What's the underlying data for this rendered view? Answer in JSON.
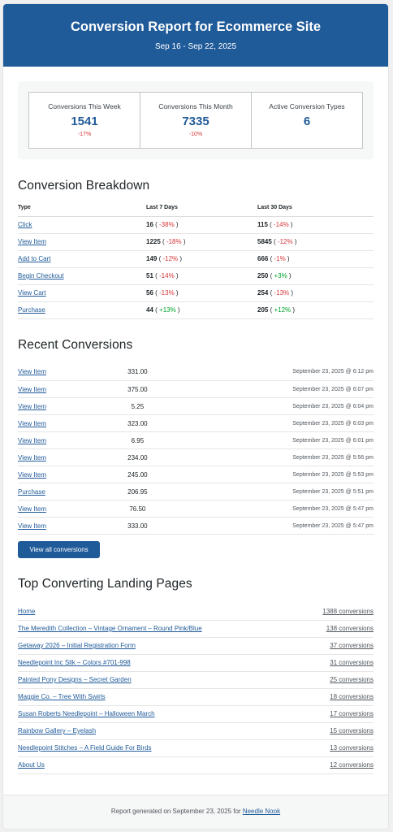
{
  "header": {
    "title": "Conversion Report for Ecommerce Site",
    "date_range": "Sep 16 - Sep 22, 2025"
  },
  "stats": [
    {
      "label": "Conversions This Week",
      "value": "1541",
      "change": "-17%"
    },
    {
      "label": "Conversions This Month",
      "value": "7335",
      "change": "-10%"
    },
    {
      "label": "Active Conversion Types",
      "value": "6",
      "change": ""
    }
  ],
  "breakdown": {
    "title": "Conversion Breakdown",
    "headers": [
      "Type",
      "Last 7 Days",
      "Last 30 Days"
    ],
    "rows": [
      {
        "type": "Click",
        "week": "16",
        "week_chg": "-38%",
        "week_dir": "neg",
        "month": "115",
        "month_chg": "-14%",
        "month_dir": "neg"
      },
      {
        "type": "View Item",
        "week": "1225",
        "week_chg": "-18%",
        "week_dir": "neg",
        "month": "5845",
        "month_chg": "-12%",
        "month_dir": "neg"
      },
      {
        "type": "Add to Cart",
        "week": "149",
        "week_chg": "-12%",
        "week_dir": "neg",
        "month": "666",
        "month_chg": "-1%",
        "month_dir": "neg"
      },
      {
        "type": "Begin Checkout",
        "week": "51",
        "week_chg": "-14%",
        "week_dir": "neg",
        "month": "250",
        "month_chg": "+3%",
        "month_dir": "pos"
      },
      {
        "type": "View Cart",
        "week": "56",
        "week_chg": "-13%",
        "week_dir": "neg",
        "month": "254",
        "month_chg": "-13%",
        "month_dir": "neg"
      },
      {
        "type": "Purchase",
        "week": "44",
        "week_chg": "+13%",
        "week_dir": "pos",
        "month": "205",
        "month_chg": "+12%",
        "month_dir": "pos"
      }
    ]
  },
  "recent": {
    "title": "Recent Conversions",
    "rows": [
      {
        "type": "View Item",
        "amount": "331.00",
        "date": "September 23, 2025 @ 6:12 pm"
      },
      {
        "type": "View Item",
        "amount": "375.00",
        "date": "September 23, 2025 @ 6:07 pm"
      },
      {
        "type": "View Item",
        "amount": "5.25",
        "date": "September 23, 2025 @ 6:04 pm"
      },
      {
        "type": "View Item",
        "amount": "323.00",
        "date": "September 23, 2025 @ 6:03 pm"
      },
      {
        "type": "View Item",
        "amount": "6.95",
        "date": "September 23, 2025 @ 6:01 pm"
      },
      {
        "type": "View Item",
        "amount": "234.00",
        "date": "September 23, 2025 @ 5:56 pm"
      },
      {
        "type": "View Item",
        "amount": "245.00",
        "date": "September 23, 2025 @ 5:53 pm"
      },
      {
        "type": "Purchase",
        "amount": "206.95",
        "date": "September 23, 2025 @ 5:51 pm"
      },
      {
        "type": "View Item",
        "amount": "76.50",
        "date": "September 23, 2025 @ 5:47 pm"
      },
      {
        "type": "View Item",
        "amount": "333.00",
        "date": "September 23, 2025 @ 5:47 pm"
      }
    ],
    "button_label": "View all conversions"
  },
  "landing": {
    "title": "Top Converting Landing Pages",
    "rows": [
      {
        "page": "Home",
        "count": "1388 conversions"
      },
      {
        "page": "The Meredith Collection – Vintage Ornament – Round Pink/Blue",
        "count": "138 conversions"
      },
      {
        "page": "Getaway 2026 – Initial Registration Form",
        "count": "37 conversions"
      },
      {
        "page": "Needlepoint Inc Silk – Colors #701-998",
        "count": "31 conversions"
      },
      {
        "page": "Painted Pony Designs – Secret Garden",
        "count": "25 conversions"
      },
      {
        "page": "Maggie Co. – Tree With Swirls",
        "count": "18 conversions"
      },
      {
        "page": "Susan Roberts Needlepoint – Halloween March",
        "count": "17 conversions"
      },
      {
        "page": "Rainbow Gallery – Eyelash",
        "count": "15 conversions"
      },
      {
        "page": "Needlepoint Stitches – A Field Guide For Birds",
        "count": "13 conversions"
      },
      {
        "page": "About Us",
        "count": "12 conversions"
      }
    ]
  },
  "footer": {
    "text": "Report generated on September 23, 2025 for",
    "site_link": "Needle Nook"
  },
  "colors": {
    "brand": "#1f5a99",
    "negative": "#d63638",
    "positive": "#00a32a"
  }
}
